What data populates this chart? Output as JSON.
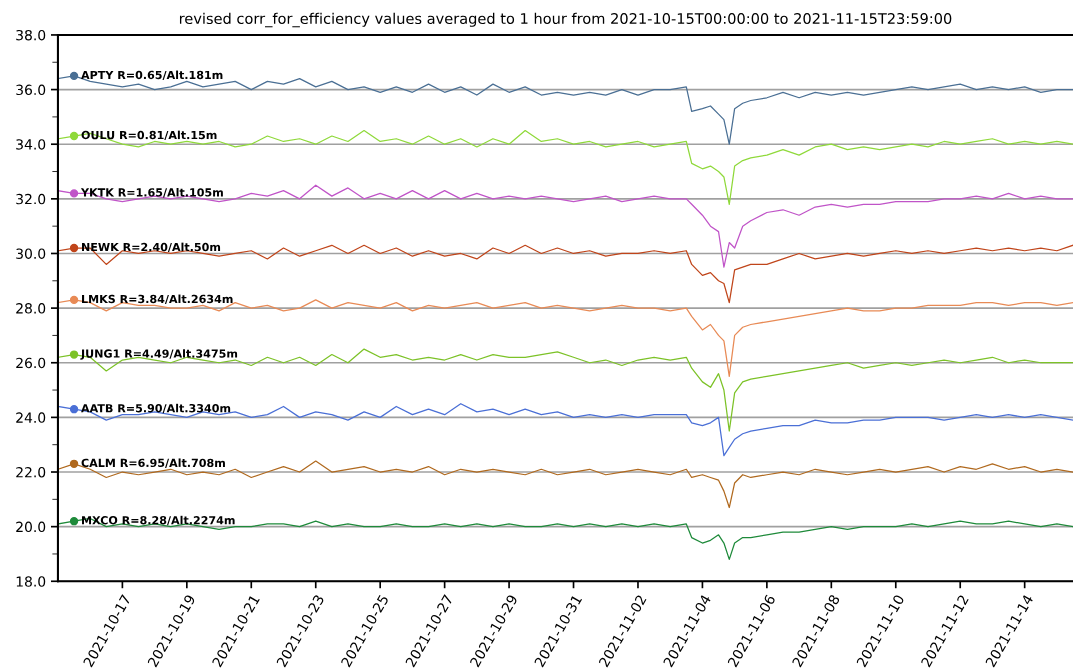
{
  "chart_data": {
    "type": "line",
    "title": "revised corr_for_efficiency values averaged to 1 hour from 2021-10-15T00:00:00 to 2021-11-15T23:59:00",
    "x": [
      "2021-10-15T00:00",
      "2021-10-15T12:00",
      "2021-10-16T00:00",
      "2021-10-16T12:00",
      "2021-10-17T00:00",
      "2021-10-17T12:00",
      "2021-10-18T00:00",
      "2021-10-18T12:00",
      "2021-10-19T00:00",
      "2021-10-19T12:00",
      "2021-10-20T00:00",
      "2021-10-20T12:00",
      "2021-10-21T00:00",
      "2021-10-21T12:00",
      "2021-10-22T00:00",
      "2021-10-22T12:00",
      "2021-10-23T00:00",
      "2021-10-23T12:00",
      "2021-10-24T00:00",
      "2021-10-24T12:00",
      "2021-10-25T00:00",
      "2021-10-25T12:00",
      "2021-10-26T00:00",
      "2021-10-26T12:00",
      "2021-10-27T00:00",
      "2021-10-27T12:00",
      "2021-10-28T00:00",
      "2021-10-28T12:00",
      "2021-10-29T00:00",
      "2021-10-29T12:00",
      "2021-10-30T00:00",
      "2021-10-30T12:00",
      "2021-10-31T00:00",
      "2021-10-31T12:00",
      "2021-11-01T00:00",
      "2021-11-01T12:00",
      "2021-11-02T00:00",
      "2021-11-02T12:00",
      "2021-11-03T00:00",
      "2021-11-03T12:00",
      "2021-11-03T16:00",
      "2021-11-04T00:00",
      "2021-11-04T06:00",
      "2021-11-04T12:00",
      "2021-11-04T16:00",
      "2021-11-04T20:00",
      "2021-11-05T00:00",
      "2021-11-05T06:00",
      "2021-11-05T12:00",
      "2021-11-06T00:00",
      "2021-11-06T12:00",
      "2021-11-07T00:00",
      "2021-11-07T12:00",
      "2021-11-08T00:00",
      "2021-11-08T12:00",
      "2021-11-09T00:00",
      "2021-11-09T12:00",
      "2021-11-10T00:00",
      "2021-11-10T12:00",
      "2021-11-11T00:00",
      "2021-11-11T12:00",
      "2021-11-12T00:00",
      "2021-11-12T12:00",
      "2021-11-13T00:00",
      "2021-11-13T12:00",
      "2021-11-14T00:00",
      "2021-11-14T12:00",
      "2021-11-15T00:00",
      "2021-11-15T12:00"
    ],
    "series": [
      {
        "name": "APTY R=0.65/Alt.181m",
        "color": "#4a6f94",
        "values": [
          36.4,
          36.5,
          36.3,
          36.2,
          36.1,
          36.2,
          36.0,
          36.1,
          36.3,
          36.1,
          36.2,
          36.3,
          36.0,
          36.3,
          36.2,
          36.4,
          36.1,
          36.3,
          36.0,
          36.1,
          35.9,
          36.1,
          35.9,
          36.2,
          35.9,
          36.1,
          35.8,
          36.2,
          35.9,
          36.1,
          35.8,
          35.9,
          35.8,
          35.9,
          35.8,
          36.0,
          35.8,
          36.0,
          36.0,
          36.1,
          35.2,
          35.3,
          35.4,
          35.1,
          34.9,
          34.0,
          35.3,
          35.5,
          35.6,
          35.7,
          35.9,
          35.7,
          35.9,
          35.8,
          35.9,
          35.8,
          35.9,
          36.0,
          36.1,
          36.0,
          36.1,
          36.2,
          36.0,
          36.1,
          36.0,
          36.1,
          35.9,
          36.0,
          36.0
        ]
      },
      {
        "name": "OULU R=0.81/Alt.15m",
        "color": "#8fd93a",
        "values": [
          34.2,
          34.3,
          34.4,
          34.2,
          34.0,
          33.9,
          34.1,
          34.0,
          34.1,
          34.0,
          34.1,
          33.9,
          34.0,
          34.3,
          34.1,
          34.2,
          34.0,
          34.3,
          34.1,
          34.5,
          34.1,
          34.2,
          34.0,
          34.3,
          34.0,
          34.2,
          33.9,
          34.2,
          34.0,
          34.5,
          34.1,
          34.2,
          34.0,
          34.1,
          33.9,
          34.0,
          34.1,
          33.9,
          34.0,
          34.1,
          33.3,
          33.1,
          33.2,
          33.0,
          32.8,
          31.8,
          33.2,
          33.4,
          33.5,
          33.6,
          33.8,
          33.6,
          33.9,
          34.0,
          33.8,
          33.9,
          33.8,
          33.9,
          34.0,
          33.9,
          34.1,
          34.0,
          34.1,
          34.2,
          34.0,
          34.1,
          34.0,
          34.1,
          34.0
        ]
      },
      {
        "name": "YKTK R=1.65/Alt.105m",
        "color": "#c054c8",
        "values": [
          32.3,
          32.2,
          32.2,
          32.0,
          31.9,
          32.0,
          32.1,
          32.0,
          32.1,
          32.0,
          31.9,
          32.0,
          32.2,
          32.1,
          32.3,
          32.0,
          32.5,
          32.1,
          32.4,
          32.0,
          32.2,
          32.0,
          32.3,
          32.0,
          32.3,
          32.0,
          32.2,
          32.0,
          32.1,
          32.0,
          32.1,
          32.0,
          31.9,
          32.0,
          32.1,
          31.9,
          32.0,
          32.1,
          32.0,
          32.0,
          31.8,
          31.4,
          31.0,
          30.8,
          29.5,
          30.4,
          30.2,
          31.0,
          31.2,
          31.5,
          31.6,
          31.4,
          31.7,
          31.8,
          31.7,
          31.8,
          31.8,
          31.9,
          31.9,
          31.9,
          32.0,
          32.0,
          32.1,
          32.0,
          32.2,
          32.0,
          32.1,
          32.0,
          32.0
        ]
      },
      {
        "name": "NEWK R=2.40/Alt.50m",
        "color": "#c0451a",
        "values": [
          30.1,
          30.2,
          30.2,
          29.6,
          30.1,
          30.0,
          30.1,
          30.0,
          30.1,
          30.0,
          29.9,
          30.0,
          30.1,
          29.8,
          30.2,
          29.9,
          30.1,
          30.3,
          30.0,
          30.3,
          30.0,
          30.2,
          29.9,
          30.1,
          29.9,
          30.0,
          29.8,
          30.2,
          30.0,
          30.3,
          30.0,
          30.2,
          30.0,
          30.1,
          29.9,
          30.0,
          30.0,
          30.1,
          30.0,
          30.1,
          29.6,
          29.2,
          29.3,
          29.0,
          28.9,
          28.2,
          29.4,
          29.5,
          29.6,
          29.6,
          29.8,
          30.0,
          29.8,
          29.9,
          30.0,
          29.9,
          30.0,
          30.1,
          30.0,
          30.1,
          30.0,
          30.1,
          30.2,
          30.1,
          30.2,
          30.1,
          30.2,
          30.1,
          30.3
        ]
      },
      {
        "name": "LMKS R=3.84/Alt.2634m",
        "color": "#e88a55",
        "values": [
          28.2,
          28.3,
          28.2,
          27.9,
          28.2,
          28.1,
          28.1,
          28.0,
          28.0,
          28.1,
          27.9,
          28.2,
          28.0,
          28.1,
          27.9,
          28.0,
          28.3,
          28.0,
          28.2,
          28.1,
          28.0,
          28.2,
          27.9,
          28.1,
          28.0,
          28.1,
          28.2,
          28.0,
          28.1,
          28.2,
          28.0,
          28.1,
          28.0,
          27.9,
          28.0,
          28.1,
          28.0,
          28.0,
          27.9,
          28.0,
          27.7,
          27.2,
          27.4,
          27.0,
          26.8,
          25.5,
          27.0,
          27.3,
          27.4,
          27.5,
          27.6,
          27.7,
          27.8,
          27.9,
          28.0,
          27.9,
          27.9,
          28.0,
          28.0,
          28.1,
          28.1,
          28.1,
          28.2,
          28.2,
          28.1,
          28.2,
          28.2,
          28.1,
          28.2
        ]
      },
      {
        "name": "JUNG1 R=4.49/Alt.3475m",
        "color": "#7cc227",
        "values": [
          26.2,
          26.3,
          26.2,
          25.7,
          26.1,
          26.2,
          26.1,
          26.0,
          26.2,
          26.1,
          26.0,
          26.1,
          25.9,
          26.2,
          26.0,
          26.2,
          25.9,
          26.3,
          26.0,
          26.5,
          26.2,
          26.3,
          26.1,
          26.2,
          26.1,
          26.3,
          26.1,
          26.3,
          26.2,
          26.2,
          26.3,
          26.4,
          26.2,
          26.0,
          26.1,
          25.9,
          26.1,
          26.2,
          26.1,
          26.2,
          25.8,
          25.3,
          25.1,
          25.6,
          25.0,
          23.5,
          24.9,
          25.3,
          25.4,
          25.5,
          25.6,
          25.7,
          25.8,
          25.9,
          26.0,
          25.8,
          25.9,
          26.0,
          25.9,
          26.0,
          26.1,
          26.0,
          26.1,
          26.2,
          26.0,
          26.1,
          26.0,
          26.0,
          26.0
        ]
      },
      {
        "name": "AATB R=5.90/Alt.3340m",
        "color": "#4a6fd6",
        "values": [
          24.4,
          24.3,
          24.2,
          23.9,
          24.1,
          24.1,
          24.2,
          24.1,
          24.0,
          24.2,
          24.1,
          24.2,
          24.0,
          24.1,
          24.4,
          24.0,
          24.2,
          24.1,
          23.9,
          24.2,
          24.0,
          24.4,
          24.1,
          24.3,
          24.1,
          24.5,
          24.2,
          24.3,
          24.1,
          24.3,
          24.1,
          24.2,
          24.0,
          24.1,
          24.0,
          24.1,
          24.0,
          24.1,
          24.1,
          24.1,
          23.8,
          23.7,
          23.8,
          24.0,
          22.6,
          22.9,
          23.2,
          23.4,
          23.5,
          23.6,
          23.7,
          23.7,
          23.9,
          23.8,
          23.8,
          23.9,
          23.9,
          24.0,
          24.0,
          24.0,
          23.9,
          24.0,
          24.1,
          24.0,
          24.1,
          24.0,
          24.1,
          24.0,
          23.9
        ]
      },
      {
        "name": "CALM R=6.95/Alt.708m",
        "color": "#b0691e",
        "values": [
          22.1,
          22.3,
          22.1,
          21.8,
          22.0,
          21.9,
          22.0,
          22.1,
          21.9,
          22.0,
          21.9,
          22.1,
          21.8,
          22.0,
          22.2,
          22.0,
          22.4,
          22.0,
          22.1,
          22.2,
          22.0,
          22.1,
          22.0,
          22.2,
          21.9,
          22.1,
          22.0,
          22.1,
          22.0,
          21.9,
          22.1,
          21.9,
          22.0,
          22.1,
          21.9,
          22.0,
          22.1,
          22.0,
          21.9,
          22.1,
          21.8,
          21.9,
          21.8,
          21.7,
          21.3,
          20.7,
          21.6,
          21.9,
          21.8,
          21.9,
          22.0,
          21.9,
          22.1,
          22.0,
          21.9,
          22.0,
          22.1,
          22.0,
          22.1,
          22.2,
          22.0,
          22.2,
          22.1,
          22.3,
          22.1,
          22.2,
          22.0,
          22.1,
          22.0
        ]
      },
      {
        "name": "MXCO R=8.28/Alt.2274m",
        "color": "#1e8a3a",
        "values": [
          20.1,
          20.2,
          20.3,
          20.0,
          20.1,
          20.0,
          20.1,
          20.0,
          20.1,
          20.0,
          19.9,
          20.0,
          20.0,
          20.1,
          20.1,
          20.0,
          20.2,
          20.0,
          20.1,
          20.0,
          20.0,
          20.1,
          20.0,
          20.0,
          20.1,
          20.0,
          20.1,
          20.0,
          20.1,
          20.0,
          20.0,
          20.1,
          20.0,
          20.1,
          20.0,
          20.1,
          20.0,
          20.1,
          20.0,
          20.1,
          19.6,
          19.4,
          19.5,
          19.7,
          19.4,
          18.8,
          19.4,
          19.6,
          19.6,
          19.7,
          19.8,
          19.8,
          19.9,
          20.0,
          19.9,
          20.0,
          20.0,
          20.0,
          20.1,
          20.0,
          20.1,
          20.2,
          20.1,
          20.1,
          20.2,
          20.1,
          20.0,
          20.1,
          20.0
        ]
      }
    ],
    "xlim": [
      "2021-10-15T00:00",
      "2021-11-15T12:00"
    ],
    "xticks": [
      "2021-10-17",
      "2021-10-19",
      "2021-10-21",
      "2021-10-23",
      "2021-10-25",
      "2021-10-27",
      "2021-10-29",
      "2021-10-31",
      "2021-11-02",
      "2021-11-04",
      "2021-11-06",
      "2021-11-08",
      "2021-11-10",
      "2021-11-12",
      "2021-11-14"
    ],
    "ylim": [
      18,
      38
    ],
    "yticks": [
      {
        "value": 18,
        "label": "18.0"
      },
      {
        "value": 19,
        "label": null
      },
      {
        "value": 20,
        "label": "20.0"
      },
      {
        "value": 21,
        "label": null
      },
      {
        "value": 22,
        "label": "22.0"
      },
      {
        "value": 23,
        "label": null
      },
      {
        "value": 24,
        "label": "24.0"
      },
      {
        "value": 25,
        "label": null
      },
      {
        "value": 26,
        "label": "26.0"
      },
      {
        "value": 27,
        "label": null
      },
      {
        "value": 28,
        "label": "28.0"
      },
      {
        "value": 29,
        "label": null
      },
      {
        "value": 30,
        "label": "30.0"
      },
      {
        "value": 31,
        "label": null
      },
      {
        "value": 32,
        "label": "32.0"
      },
      {
        "value": 33,
        "label": null
      },
      {
        "value": 34,
        "label": "34.0"
      },
      {
        "value": 35,
        "label": null
      },
      {
        "value": 36,
        "label": "36.0"
      },
      {
        "value": 37,
        "label": null
      },
      {
        "value": 38,
        "label": "38.0"
      }
    ],
    "grid": "y",
    "legend": false,
    "marker": "none",
    "line_style": "solid"
  }
}
